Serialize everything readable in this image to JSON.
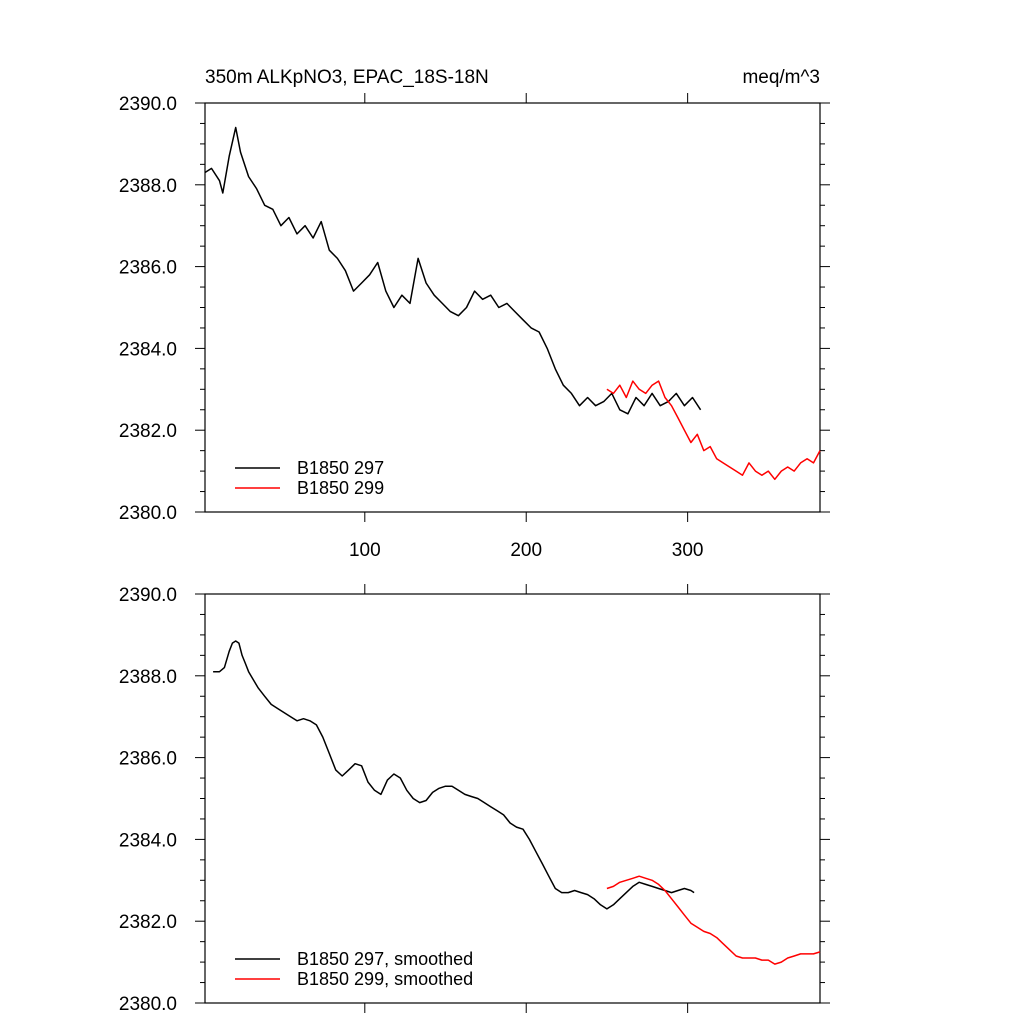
{
  "chart_data": [
    {
      "type": "line",
      "title": "350m ALKpNO3, EPAC_18S-18N",
      "units": "meq/m^3",
      "xlabel": "",
      "ylabel": "",
      "xlim": [
        1,
        382
      ],
      "ylim": [
        2380,
        2390
      ],
      "xticks": [
        100,
        200,
        300
      ],
      "xtick_labels": [
        "100",
        "200",
        "300"
      ],
      "yticks": [
        2380,
        2382,
        2384,
        2386,
        2388,
        2390
      ],
      "ytick_labels": [
        "2380.0",
        "2382.0",
        "2384.0",
        "2386.0",
        "2388.0",
        "2390.0"
      ],
      "legend_position": "bottom-left",
      "series": [
        {
          "name": "B1850 297",
          "color": "#000000",
          "x": [
            1,
            5,
            10,
            12,
            16,
            20,
            23,
            28,
            33,
            38,
            43,
            48,
            53,
            58,
            63,
            68,
            73,
            78,
            83,
            88,
            93,
            98,
            103,
            108,
            113,
            118,
            123,
            128,
            133,
            138,
            143,
            148,
            153,
            158,
            163,
            168,
            173,
            178,
            183,
            188,
            193,
            198,
            203,
            208,
            213,
            218,
            223,
            228,
            233,
            238,
            243,
            248,
            253,
            258,
            263,
            268,
            273,
            278,
            283,
            288,
            293,
            298,
            303,
            308
          ],
          "values": [
            2388.3,
            2388.4,
            2388.1,
            2387.8,
            2388.7,
            2389.4,
            2388.8,
            2388.2,
            2387.9,
            2387.5,
            2387.4,
            2387.0,
            2387.2,
            2386.8,
            2387.0,
            2386.7,
            2387.1,
            2386.4,
            2386.2,
            2385.9,
            2385.4,
            2385.6,
            2385.8,
            2386.1,
            2385.4,
            2385.0,
            2385.3,
            2385.1,
            2386.2,
            2385.6,
            2385.3,
            2385.1,
            2384.9,
            2384.8,
            2385.0,
            2385.4,
            2385.2,
            2385.3,
            2385.0,
            2385.1,
            2384.9,
            2384.7,
            2384.5,
            2384.4,
            2384.0,
            2383.5,
            2383.1,
            2382.9,
            2382.6,
            2382.8,
            2382.6,
            2382.7,
            2382.9,
            2382.5,
            2382.4,
            2382.8,
            2382.6,
            2382.9,
            2382.6,
            2382.7,
            2382.9,
            2382.6,
            2382.8,
            2382.5
          ]
        },
        {
          "name": "B1850 299",
          "color": "#ff0000",
          "x": [
            250,
            254,
            258,
            262,
            266,
            270,
            274,
            278,
            282,
            286,
            290,
            294,
            298,
            302,
            306,
            310,
            314,
            318,
            322,
            326,
            330,
            334,
            338,
            342,
            346,
            350,
            354,
            358,
            362,
            366,
            370,
            374,
            378,
            382
          ],
          "values": [
            2383.0,
            2382.9,
            2383.1,
            2382.8,
            2383.2,
            2383.0,
            2382.9,
            2383.1,
            2383.2,
            2382.8,
            2382.6,
            2382.3,
            2382.0,
            2381.7,
            2381.9,
            2381.5,
            2381.6,
            2381.3,
            2381.2,
            2381.1,
            2381.0,
            2380.9,
            2381.2,
            2381.0,
            2380.9,
            2381.0,
            2380.8,
            2381.0,
            2381.1,
            2381.0,
            2381.2,
            2381.3,
            2381.2,
            2381.5
          ]
        }
      ]
    },
    {
      "type": "line",
      "title": "",
      "xlabel": "",
      "ylabel": "",
      "xlim": [
        1,
        382
      ],
      "ylim": [
        2380,
        2390
      ],
      "xticks": [
        100,
        200,
        300
      ],
      "yticks": [
        2380,
        2382,
        2384,
        2386,
        2388,
        2390
      ],
      "ytick_labels": [
        "2380.0",
        "2382.0",
        "2384.0",
        "2386.0",
        "2388.0",
        "2390.0"
      ],
      "legend_position": "bottom-left",
      "series": [
        {
          "name": "B1850 297, smoothed",
          "color": "#000000",
          "x": [
            6,
            10,
            13,
            16,
            18,
            20,
            22,
            24,
            26,
            28,
            31,
            34,
            38,
            42,
            46,
            50,
            54,
            58,
            62,
            66,
            70,
            74,
            78,
            82,
            86,
            90,
            94,
            98,
            102,
            106,
            110,
            114,
            118,
            122,
            126,
            130,
            134,
            138,
            142,
            146,
            150,
            154,
            158,
            162,
            166,
            170,
            174,
            178,
            182,
            186,
            190,
            194,
            198,
            202,
            206,
            210,
            214,
            218,
            222,
            226,
            230,
            234,
            238,
            242,
            246,
            250,
            254,
            258,
            262,
            266,
            270,
            274,
            278,
            282,
            286,
            290,
            294,
            298,
            302,
            304
          ],
          "values": [
            2388.1,
            2388.1,
            2388.2,
            2388.6,
            2388.8,
            2388.85,
            2388.8,
            2388.5,
            2388.3,
            2388.1,
            2387.9,
            2387.7,
            2387.5,
            2387.3,
            2387.2,
            2387.1,
            2387.0,
            2386.9,
            2386.95,
            2386.9,
            2386.8,
            2386.5,
            2386.1,
            2385.7,
            2385.55,
            2385.7,
            2385.85,
            2385.8,
            2385.4,
            2385.2,
            2385.1,
            2385.45,
            2385.6,
            2385.5,
            2385.2,
            2385.0,
            2384.9,
            2384.95,
            2385.15,
            2385.25,
            2385.3,
            2385.3,
            2385.2,
            2385.1,
            2385.05,
            2385.0,
            2384.9,
            2384.8,
            2384.7,
            2384.6,
            2384.4,
            2384.3,
            2384.25,
            2384.0,
            2383.7,
            2383.4,
            2383.1,
            2382.8,
            2382.7,
            2382.7,
            2382.75,
            2382.7,
            2382.65,
            2382.55,
            2382.4,
            2382.3,
            2382.4,
            2382.55,
            2382.7,
            2382.85,
            2382.95,
            2382.9,
            2382.85,
            2382.8,
            2382.75,
            2382.7,
            2382.75,
            2382.8,
            2382.75,
            2382.7
          ]
        },
        {
          "name": "B1850 299, smoothed",
          "color": "#ff0000",
          "x": [
            250,
            254,
            258,
            262,
            266,
            270,
            274,
            278,
            282,
            286,
            290,
            294,
            298,
            302,
            306,
            310,
            314,
            318,
            322,
            326,
            330,
            334,
            338,
            342,
            346,
            350,
            354,
            358,
            362,
            366,
            370,
            374,
            378,
            382
          ],
          "values": [
            2382.8,
            2382.85,
            2382.95,
            2383.0,
            2383.05,
            2383.1,
            2383.05,
            2383.0,
            2382.9,
            2382.75,
            2382.55,
            2382.35,
            2382.15,
            2381.95,
            2381.85,
            2381.75,
            2381.7,
            2381.6,
            2381.45,
            2381.3,
            2381.15,
            2381.1,
            2381.1,
            2381.1,
            2381.05,
            2381.05,
            2380.95,
            2381.0,
            2381.1,
            2381.15,
            2381.2,
            2381.2,
            2381.2,
            2381.25
          ]
        }
      ]
    }
  ]
}
